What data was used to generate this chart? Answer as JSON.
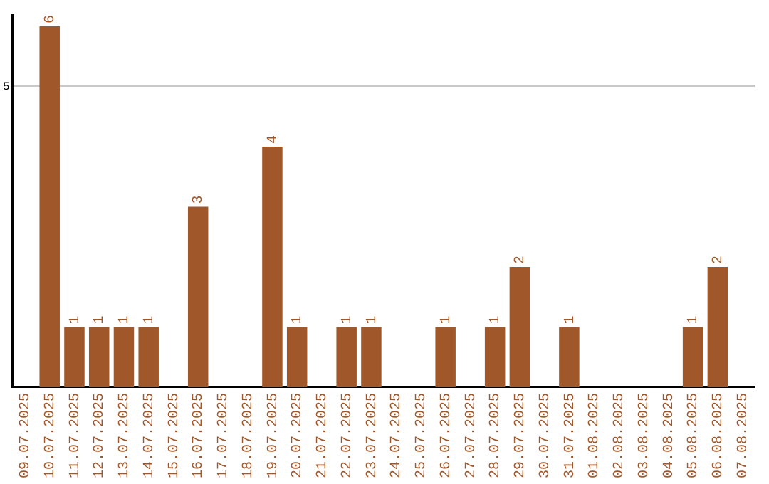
{
  "chart_data": {
    "type": "bar",
    "categories": [
      "09.07.2025",
      "10.07.2025",
      "11.07.2025",
      "12.07.2025",
      "13.07.2025",
      "14.07.2025",
      "15.07.2025",
      "16.07.2025",
      "17.07.2025",
      "18.07.2025",
      "19.07.2025",
      "20.07.2025",
      "21.07.2025",
      "22.07.2025",
      "23.07.2025",
      "24.07.2025",
      "25.07.2025",
      "26.07.2025",
      "27.07.2025",
      "28.07.2025",
      "29.07.2025",
      "30.07.2025",
      "31.07.2025",
      "01.08.2025",
      "02.08.2025",
      "03.08.2025",
      "04.08.2025",
      "05.08.2025",
      "06.08.2025",
      "07.08.2025"
    ],
    "values": [
      null,
      6,
      1,
      1,
      1,
      1,
      null,
      3,
      null,
      null,
      4,
      1,
      null,
      1,
      1,
      null,
      null,
      1,
      null,
      1,
      2,
      null,
      1,
      null,
      null,
      null,
      null,
      1,
      2,
      null
    ],
    "color": "#a0572a",
    "ylim": [
      0,
      6.2
    ],
    "yticks": [
      5
    ],
    "grid": "y",
    "data_labels": true,
    "legend": false
  }
}
